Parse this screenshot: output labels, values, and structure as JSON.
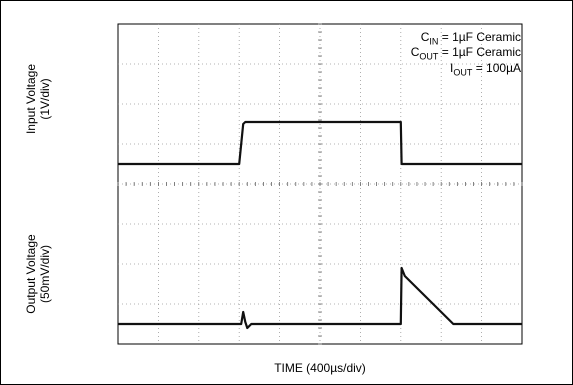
{
  "chart_data": {
    "type": "line",
    "xlabel": "TIME (400µs/div)",
    "grid": true,
    "divisions": {
      "x": 10,
      "y": 8
    },
    "annotations": [
      {
        "main": "C",
        "sub": "IN",
        "rest": " = 1µF Ceramic"
      },
      {
        "main": "C",
        "sub": "OUT",
        "rest": " = 1µF Ceramic"
      },
      {
        "main": "I",
        "sub": "OUT",
        "rest": " = 100µA"
      }
    ],
    "series": [
      {
        "ylabel_line1": "Input Voltage",
        "ylabel_line2": "(1V/div)",
        "xlim": [
          0,
          10
        ],
        "ylim": [
          0,
          4
        ],
        "x": [
          0,
          3.0,
          3.1,
          3.15,
          7.0,
          7.02,
          10
        ],
        "y": [
          0,
          0,
          1,
          1.05,
          1.05,
          0,
          0
        ]
      },
      {
        "ylabel_line1": "Output Voltage",
        "ylabel_line2": "(50mV/div)",
        "xlim": [
          0,
          10
        ],
        "ylim": [
          0,
          4
        ],
        "x": [
          0,
          3.05,
          3.1,
          3.15,
          3.2,
          3.3,
          7.0,
          7.02,
          7.1,
          8.3,
          10
        ],
        "y": [
          0,
          0,
          0.3,
          0.05,
          -0.1,
          0,
          0,
          1.4,
          1.2,
          0,
          0
        ]
      }
    ]
  }
}
